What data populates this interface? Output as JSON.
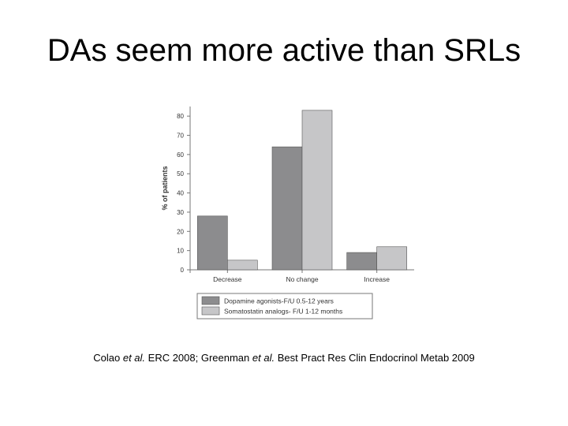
{
  "slide": {
    "title": "DAs seem more active than SRLs",
    "citation": {
      "part1": "Colao ",
      "etal1": "et al.",
      "part2": " ERC 2008; Greenman ",
      "etal2": "et al.",
      "part3": " Best Pract Res Clin Endocrinol Metab 2009"
    }
  },
  "chart_data": {
    "type": "bar",
    "ylabel": "% of patients",
    "xlabel": "",
    "ylim": [
      0,
      85
    ],
    "yticks": [
      0,
      10,
      20,
      30,
      40,
      50,
      60,
      70,
      80
    ],
    "categories": [
      "Decrease",
      "No change",
      "Increase"
    ],
    "series": [
      {
        "name": "Dopamine agonists-F/U 0.5-12 years",
        "values": [
          28,
          64,
          9
        ],
        "color": "#8c8c8e"
      },
      {
        "name": "Somatostatin analogs- F/U 1-12 months",
        "values": [
          5,
          83,
          12
        ],
        "color": "#c6c6c8"
      }
    ],
    "legend_position": "bottom",
    "grid": false
  }
}
